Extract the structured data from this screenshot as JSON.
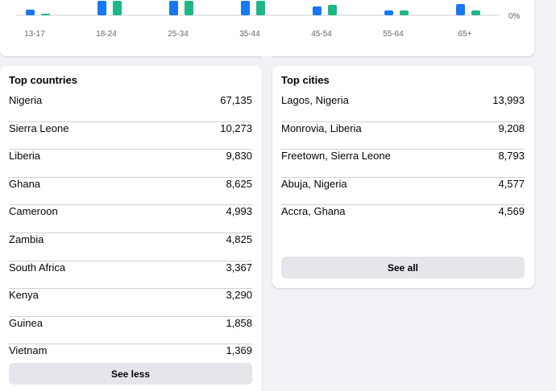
{
  "chart_data": {
    "type": "bar",
    "categories": [
      "13-17",
      "18-24",
      "25-34",
      "35-44",
      "45-54",
      "55-64",
      "65+"
    ],
    "series": [
      {
        "values": [
          7,
          18,
          18,
          18,
          11,
          6,
          14
        ]
      },
      {
        "values": [
          2,
          18,
          18,
          18,
          13,
          6,
          6
        ]
      }
    ],
    "y_tick_label": "0%",
    "colors": [
      "#1877f2",
      "#1fb68a"
    ]
  },
  "countries": {
    "title": "Top countries",
    "rows": [
      {
        "name": "Nigeria",
        "value": "67,135"
      },
      {
        "name": "Sierra Leone",
        "value": "10,273"
      },
      {
        "name": "Liberia",
        "value": "9,830"
      },
      {
        "name": "Ghana",
        "value": "8,625"
      },
      {
        "name": "Cameroon",
        "value": "4,993"
      },
      {
        "name": "Zambia",
        "value": "4,825"
      },
      {
        "name": "South Africa",
        "value": "3,367"
      },
      {
        "name": "Kenya",
        "value": "3,290"
      },
      {
        "name": "Guinea",
        "value": "1,858"
      },
      {
        "name": "Vietnam",
        "value": "1,369"
      }
    ],
    "button_label": "See less"
  },
  "cities": {
    "title": "Top cities",
    "rows": [
      {
        "name": "Lagos, Nigeria",
        "value": "13,993"
      },
      {
        "name": "Monrovia, Liberia",
        "value": "9,208"
      },
      {
        "name": "Freetown, Sierra Leone",
        "value": "8,793"
      },
      {
        "name": "Abuja, Nigeria",
        "value": "4,577"
      },
      {
        "name": "Accra, Ghana",
        "value": "4,569"
      }
    ],
    "button_label": "See all"
  }
}
